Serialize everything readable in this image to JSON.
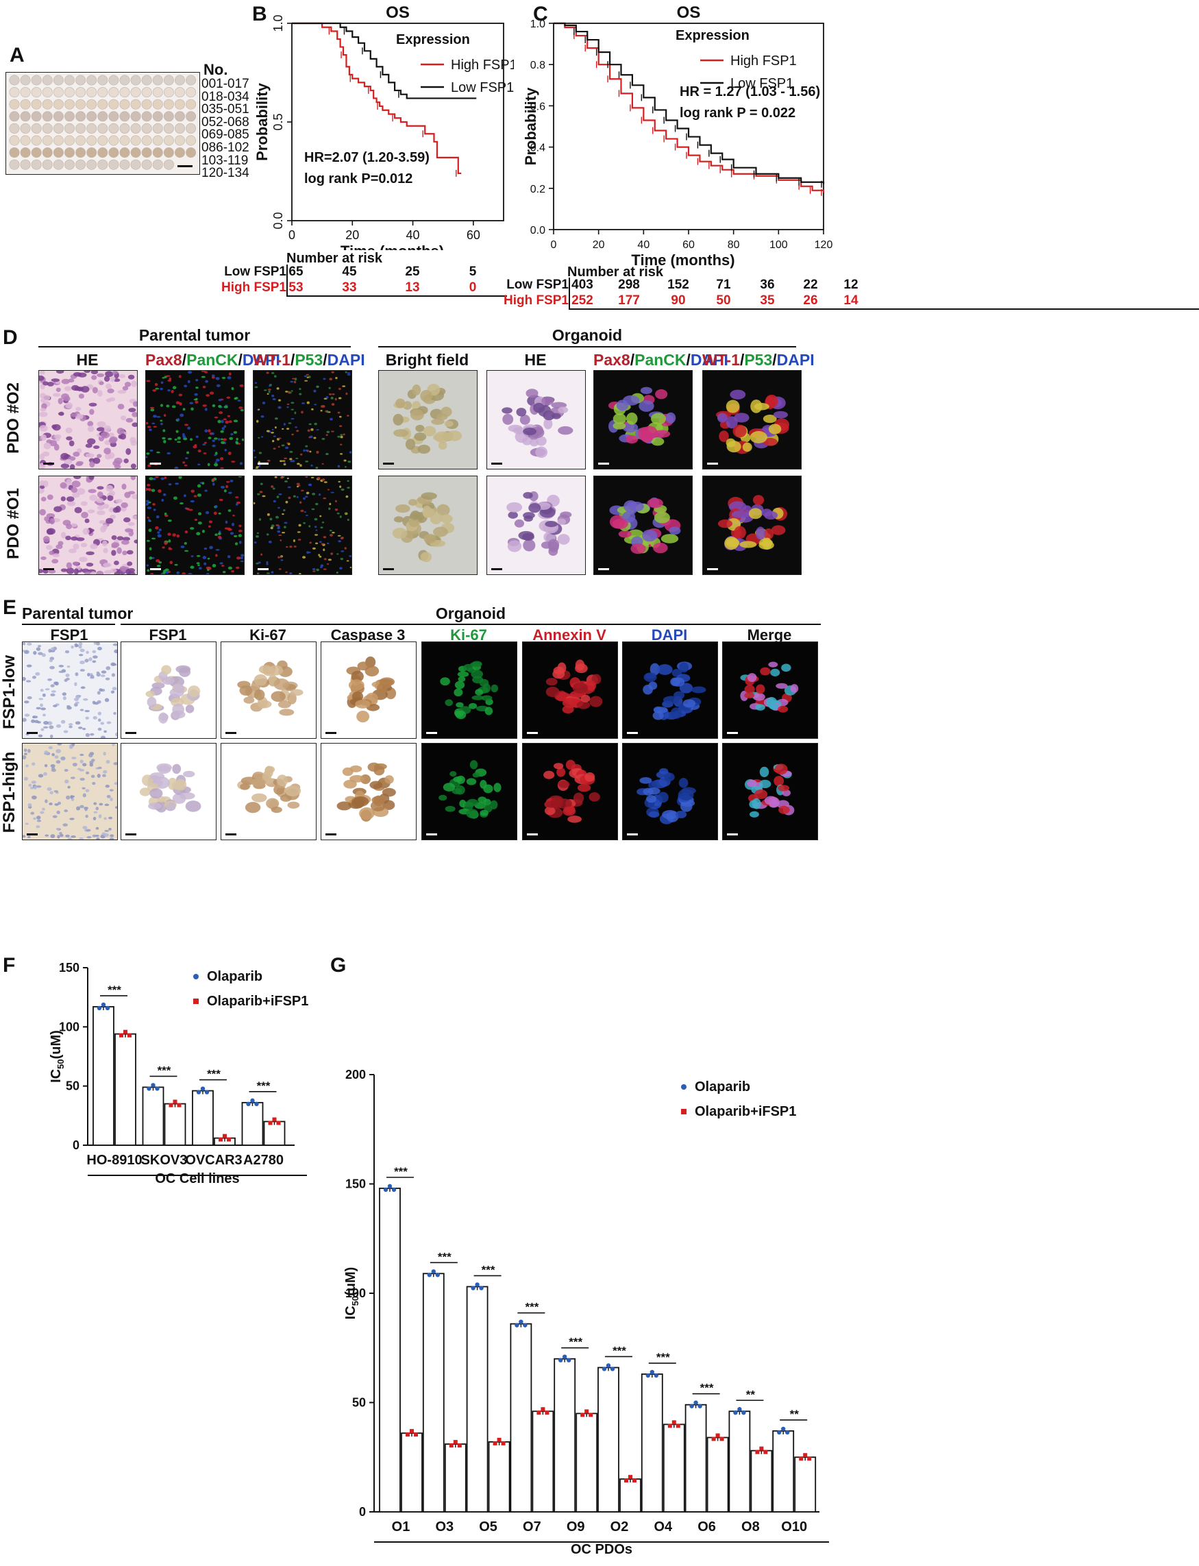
{
  "panels": {
    "A": {
      "letter": "A",
      "no_header": "No.",
      "rows": [
        "001-017",
        "018-034",
        "035-051",
        "052-068",
        "069-085",
        "086-102",
        "103-119",
        "120-134"
      ]
    },
    "B": {
      "letter": "B",
      "risk_header": "Number at risk",
      "risk_rows": [
        {
          "label": "Low FSP1",
          "values": [
            "65",
            "45",
            "25",
            "5"
          ],
          "color": "#111111"
        },
        {
          "label": "High FSP1",
          "values": [
            "53",
            "33",
            "13",
            "0"
          ],
          "color": "#d61e1e"
        }
      ]
    },
    "C": {
      "letter": "C",
      "risk_header": "Number at risk",
      "risk_rows": [
        {
          "label": "Low FSP1",
          "values": [
            "403",
            "298",
            "152",
            "71",
            "36",
            "22",
            "12"
          ],
          "color": "#111111"
        },
        {
          "label": "High FSP1",
          "values": [
            "252",
            "177",
            "90",
            "50",
            "35",
            "26",
            "14"
          ],
          "color": "#d61e1e"
        }
      ]
    },
    "D": {
      "letter": "D",
      "group_parental": "Parental tumor",
      "group_organoid": "Organoid",
      "col_he": "HE",
      "col_bright": "Bright field",
      "stain1": {
        "a": "Pax8",
        "b": "PanCK",
        "c": "DAPI"
      },
      "stain2": {
        "a": "WT-1",
        "b": "P53",
        "c": "DAPI"
      },
      "row1": "PDO #O2",
      "row2": "PDO #O1"
    },
    "E": {
      "letter": "E",
      "group_parental": "Parental tumor",
      "group_organoid": "Organoid",
      "columns": [
        "FSP1",
        "FSP1",
        "Ki-67",
        "Caspase 3",
        "Ki-67",
        "Annexin V",
        "DAPI",
        "Merge"
      ],
      "column_colors": [
        "#111111",
        "#111111",
        "#111111",
        "#111111",
        "#1f9a3a",
        "#c8202a",
        "#2449b8",
        "#111111"
      ],
      "row1": "FSP1-low",
      "row2": "FSP1-high"
    },
    "F": {
      "letter": "F",
      "group_label": "OC Cell lines"
    },
    "G": {
      "letter": "G",
      "group_label": "OC PDOs"
    }
  },
  "chart_data": [
    {
      "id": "B",
      "type": "line",
      "title": "OS",
      "xlabel": "Time (months)",
      "ylabel": "Probability",
      "xlim": [
        0,
        70
      ],
      "ylim": [
        0,
        1
      ],
      "xticks": [
        0,
        20,
        40,
        60
      ],
      "yticks": [
        0.0,
        0.5,
        1.0
      ],
      "ytick_labels": [
        "0.0",
        "0.5",
        "1.0"
      ],
      "legend_title": "Expression",
      "annotations": [
        "HR=2.07 (1.20-3.59)",
        "log rank P=0.012"
      ],
      "series": [
        {
          "name": "High FSP1",
          "color": "#d61e1e",
          "x": [
            0,
            10,
            13,
            15,
            16,
            17,
            18,
            19,
            20,
            22,
            24,
            26,
            27,
            28,
            29,
            30,
            32,
            34,
            36,
            38,
            44,
            47,
            48,
            55,
            56
          ],
          "y": [
            1.0,
            0.98,
            0.96,
            0.92,
            0.88,
            0.84,
            0.78,
            0.74,
            0.72,
            0.7,
            0.68,
            0.66,
            0.62,
            0.6,
            0.58,
            0.56,
            0.54,
            0.52,
            0.5,
            0.48,
            0.44,
            0.4,
            0.32,
            0.24,
            0.24
          ]
        },
        {
          "name": "Low FSP1",
          "color": "#111111",
          "x": [
            0,
            16,
            18,
            20,
            22,
            24,
            26,
            28,
            30,
            32,
            34,
            36,
            38,
            61
          ],
          "y": [
            1.0,
            0.98,
            0.96,
            0.93,
            0.9,
            0.86,
            0.82,
            0.78,
            0.74,
            0.7,
            0.66,
            0.64,
            0.62,
            0.62
          ]
        }
      ]
    },
    {
      "id": "C",
      "type": "line",
      "title": "OS",
      "xlabel": "Time (months)",
      "ylabel": "Probability",
      "xlim": [
        0,
        120
      ],
      "ylim": [
        0,
        1
      ],
      "xticks": [
        0,
        20,
        40,
        60,
        80,
        100,
        120
      ],
      "yticks": [
        0.0,
        0.2,
        0.4,
        0.6,
        0.8,
        1.0
      ],
      "ytick_labels": [
        "0.0",
        "0.2",
        "0.4",
        "0.6",
        "0.8",
        "1.0"
      ],
      "legend_title": "Expression",
      "annotations": [
        "HR = 1.27 (1.03 - 1.56)",
        "log rank P = 0.022"
      ],
      "series": [
        {
          "name": "High FSP1",
          "color": "#d61e1e",
          "x": [
            0,
            5,
            10,
            15,
            20,
            25,
            30,
            35,
            40,
            45,
            50,
            55,
            60,
            65,
            70,
            75,
            80,
            90,
            100,
            110,
            115,
            120
          ],
          "y": [
            1.0,
            0.98,
            0.94,
            0.88,
            0.8,
            0.73,
            0.66,
            0.59,
            0.53,
            0.48,
            0.44,
            0.4,
            0.36,
            0.33,
            0.31,
            0.29,
            0.27,
            0.26,
            0.24,
            0.21,
            0.19,
            0.18
          ]
        },
        {
          "name": "Low  FSP1",
          "color": "#111111",
          "x": [
            0,
            5,
            10,
            15,
            20,
            25,
            30,
            35,
            40,
            45,
            50,
            55,
            60,
            65,
            70,
            75,
            80,
            90,
            100,
            110,
            120
          ],
          "y": [
            1.0,
            0.99,
            0.96,
            0.92,
            0.86,
            0.8,
            0.75,
            0.7,
            0.64,
            0.58,
            0.53,
            0.49,
            0.45,
            0.41,
            0.37,
            0.34,
            0.3,
            0.27,
            0.25,
            0.23,
            0.22
          ]
        }
      ]
    },
    {
      "id": "F",
      "type": "bar",
      "ylabel_main": "IC",
      "ylabel_sub": "50",
      "ylabel_unit": "(uM)",
      "ylim": [
        0,
        150
      ],
      "yticks": [
        0,
        50,
        100,
        150
      ],
      "categories": [
        "HO-8910",
        "SKOV3",
        "OVCAR3",
        "A2780"
      ],
      "series": [
        {
          "name": "Olaparib",
          "color": "#2a5fb8",
          "values": [
            117,
            49,
            46,
            36
          ]
        },
        {
          "name": "Olaparib+iFSP1",
          "color": "#d61e1e",
          "values": [
            94,
            35,
            6,
            20
          ]
        }
      ],
      "significance": [
        "***",
        "***",
        "***",
        "***"
      ]
    },
    {
      "id": "G",
      "type": "bar",
      "ylabel_main": "IC",
      "ylabel_sub": "50",
      "ylabel_unit": "(uM)",
      "ylim": [
        0,
        200
      ],
      "yticks": [
        0,
        50,
        100,
        150,
        200
      ],
      "categories": [
        "O1",
        "O3",
        "O5",
        "O7",
        "O9",
        "O2",
        "O4",
        "O6",
        "O8",
        "O10"
      ],
      "series": [
        {
          "name": "Olaparib",
          "color": "#2a5fb8",
          "values": [
            148,
            109,
            103,
            86,
            70,
            66,
            63,
            49,
            46,
            37
          ]
        },
        {
          "name": "Olaparib+iFSP1",
          "color": "#d61e1e",
          "values": [
            36,
            31,
            32,
            46,
            45,
            15,
            40,
            34,
            28,
            25
          ]
        }
      ],
      "significance": [
        "***",
        "***",
        "***",
        "***",
        "***",
        "***",
        "***",
        "***",
        "**",
        "**"
      ]
    }
  ]
}
